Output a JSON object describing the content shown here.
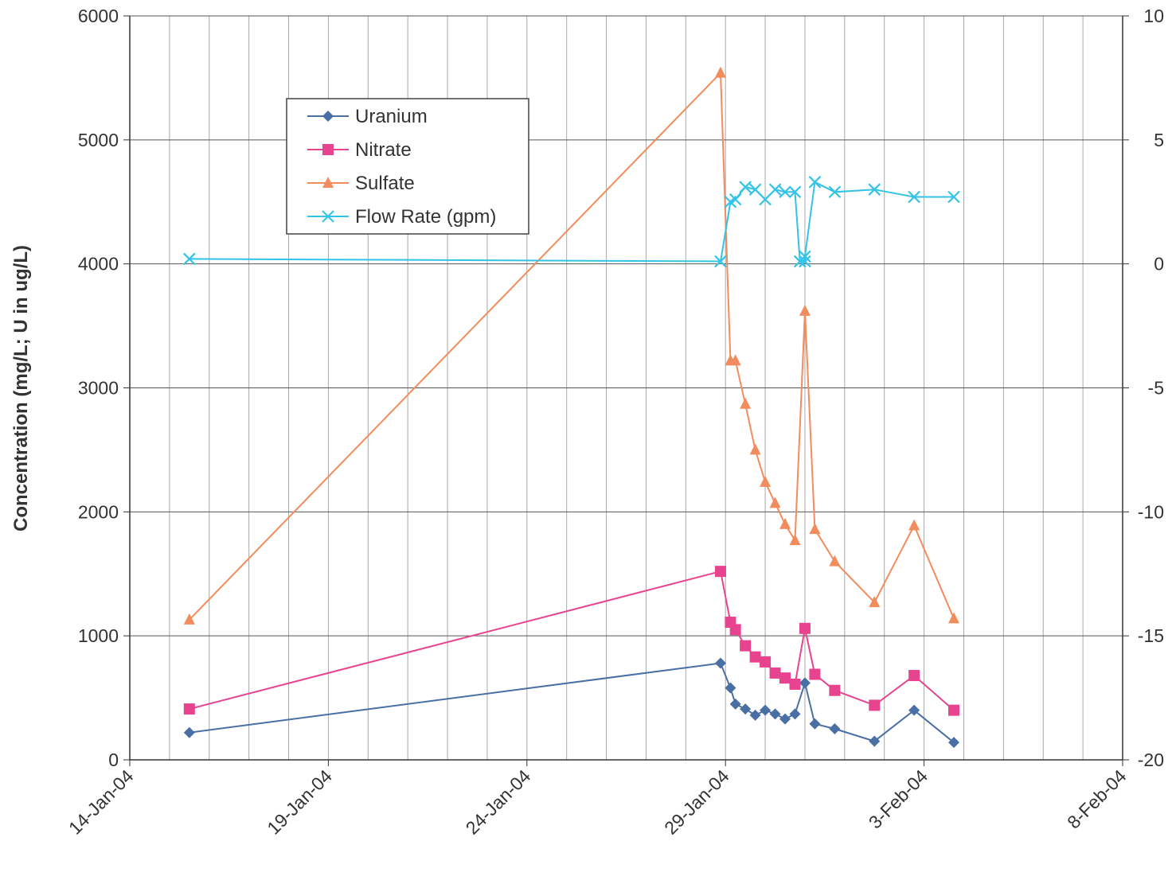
{
  "chart_data": {
    "type": "line",
    "title": "",
    "xlabel": "",
    "ylabel": "Concentration (mg/L; U in ug/L)",
    "y2label": "",
    "x_ticks": [
      "14-Jan-04",
      "19-Jan-04",
      "24-Jan-04",
      "29-Jan-04",
      "3-Feb-04",
      "8-Feb-04"
    ],
    "xlim": [
      "2004-01-14",
      "2004-02-08"
    ],
    "ylim": [
      0,
      6000
    ],
    "y_ticks": [
      0,
      1000,
      2000,
      3000,
      4000,
      5000,
      6000
    ],
    "y2lim": [
      -20,
      10
    ],
    "y2_ticks": [
      -20,
      -15,
      -10,
      -5,
      0,
      5,
      10
    ],
    "grid": true,
    "legend_position": "top-left",
    "series": [
      {
        "name": "Uranium",
        "axis": "left",
        "color": "#4a6fa5",
        "marker": "diamond",
        "points": [
          [
            "2004-01-15 12:00",
            220
          ],
          [
            "2004-01-28 21:00",
            780
          ],
          [
            "2004-01-29 03:00",
            580
          ],
          [
            "2004-01-29 06:00",
            450
          ],
          [
            "2004-01-29 12:00",
            410
          ],
          [
            "2004-01-29 18:00",
            360
          ],
          [
            "2004-01-30 00:00",
            400
          ],
          [
            "2004-01-30 06:00",
            370
          ],
          [
            "2004-01-30 12:00",
            330
          ],
          [
            "2004-01-30 18:00",
            370
          ],
          [
            "2004-01-31 00:00",
            620
          ],
          [
            "2004-01-31 06:00",
            290
          ],
          [
            "2004-01-31 18:00",
            250
          ],
          [
            "2004-02-01 18:00",
            150
          ],
          [
            "2004-02-02 18:00",
            400
          ],
          [
            "2004-02-03 18:00",
            140
          ]
        ]
      },
      {
        "name": "Nitrate",
        "axis": "left",
        "color": "#e8438f",
        "marker": "square",
        "points": [
          [
            "2004-01-15 12:00",
            410
          ],
          [
            "2004-01-28 21:00",
            1520
          ],
          [
            "2004-01-29 03:00",
            1110
          ],
          [
            "2004-01-29 06:00",
            1050
          ],
          [
            "2004-01-29 12:00",
            920
          ],
          [
            "2004-01-29 18:00",
            830
          ],
          [
            "2004-01-30 00:00",
            790
          ],
          [
            "2004-01-30 06:00",
            700
          ],
          [
            "2004-01-30 12:00",
            660
          ],
          [
            "2004-01-30 18:00",
            610
          ],
          [
            "2004-01-31 00:00",
            1060
          ],
          [
            "2004-01-31 06:00",
            690
          ],
          [
            "2004-01-31 18:00",
            560
          ],
          [
            "2004-02-01 18:00",
            440
          ],
          [
            "2004-02-02 18:00",
            680
          ],
          [
            "2004-02-03 18:00",
            400
          ]
        ]
      },
      {
        "name": "Sulfate",
        "axis": "left",
        "color": "#f28c5c",
        "marker": "triangle",
        "points": [
          [
            "2004-01-15 12:00",
            1130
          ],
          [
            "2004-01-28 21:00",
            5540
          ],
          [
            "2004-01-29 03:00",
            3220
          ],
          [
            "2004-01-29 06:00",
            3220
          ],
          [
            "2004-01-29 12:00",
            2870
          ],
          [
            "2004-01-29 18:00",
            2500
          ],
          [
            "2004-01-30 00:00",
            2240
          ],
          [
            "2004-01-30 06:00",
            2070
          ],
          [
            "2004-01-30 12:00",
            1900
          ],
          [
            "2004-01-30 18:00",
            1770
          ],
          [
            "2004-01-31 00:00",
            3620
          ],
          [
            "2004-01-31 06:00",
            1860
          ],
          [
            "2004-01-31 18:00",
            1600
          ],
          [
            "2004-02-01 18:00",
            1270
          ],
          [
            "2004-02-02 18:00",
            1890
          ],
          [
            "2004-02-03 18:00",
            1140
          ]
        ]
      },
      {
        "name": "Flow Rate (gpm)",
        "axis": "right",
        "color": "#33c3e6",
        "marker": "x",
        "points": [
          [
            "2004-01-15 12:00",
            0.2
          ],
          [
            "2004-01-28 21:00",
            0.1
          ],
          [
            "2004-01-29 03:00",
            2.5
          ],
          [
            "2004-01-29 06:00",
            2.6
          ],
          [
            "2004-01-29 12:00",
            3.1
          ],
          [
            "2004-01-29 18:00",
            3.0
          ],
          [
            "2004-01-30 00:00",
            2.6
          ],
          [
            "2004-01-30 06:00",
            3.0
          ],
          [
            "2004-01-30 12:00",
            2.9
          ],
          [
            "2004-01-30 18:00",
            2.9
          ],
          [
            "2004-01-30 21:00",
            0.1
          ],
          [
            "2004-01-31 00:00",
            0.1
          ],
          [
            "2004-01-31 00:00",
            0.3
          ],
          [
            "2004-01-31 06:00",
            3.3
          ],
          [
            "2004-01-31 18:00",
            2.9
          ],
          [
            "2004-02-01 18:00",
            3.0
          ],
          [
            "2004-02-02 18:00",
            2.7
          ],
          [
            "2004-02-03 18:00",
            2.7
          ]
        ]
      }
    ]
  }
}
